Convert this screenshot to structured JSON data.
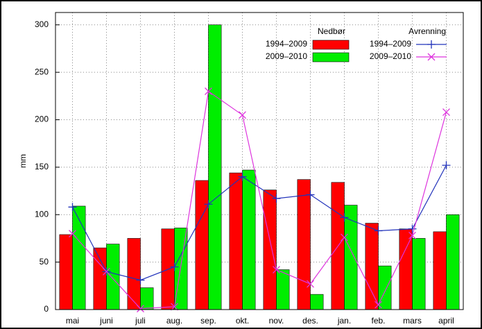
{
  "chart_data": {
    "type": "bar-line",
    "y_label": "mm",
    "categories": [
      "mai",
      "juni",
      "juli",
      "aug.",
      "sep.",
      "okt.",
      "nov.",
      "des.",
      "jan.",
      "feb.",
      "mars",
      "april"
    ],
    "ylim": [
      0,
      313
    ],
    "yticks": [
      0,
      50,
      100,
      150,
      200,
      250,
      300
    ],
    "grid": true,
    "bars": {
      "title": "Nedbør",
      "series": [
        {
          "name": "1994–2009",
          "color": "#ff0000",
          "values": [
            79,
            65,
            75,
            85,
            136,
            144,
            126,
            137,
            134,
            91,
            85,
            82
          ]
        },
        {
          "name": "2009–2010",
          "color": "#00ee00",
          "values": [
            109,
            69,
            23,
            86,
            300,
            147,
            42,
            16,
            110,
            46,
            75,
            100
          ]
        }
      ]
    },
    "lines": {
      "title": "Avrenning",
      "series": [
        {
          "name": "1994–2009",
          "color": "#2233bb",
          "marker": "+",
          "values": [
            108,
            40,
            31,
            45,
            111,
            140,
            117,
            121,
            97,
            83,
            85,
            152
          ]
        },
        {
          "name": "2009–2010",
          "color": "#dd33dd",
          "marker": "x",
          "values": [
            80,
            40,
            1,
            3,
            230,
            205,
            42,
            27,
            76,
            5,
            78,
            208
          ]
        }
      ]
    }
  }
}
